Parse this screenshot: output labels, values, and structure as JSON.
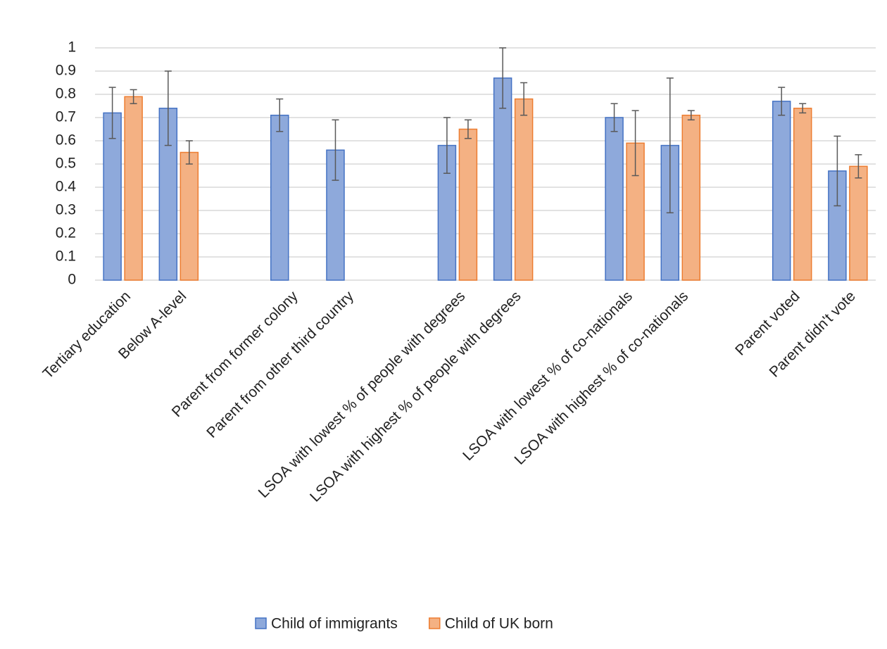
{
  "chart_data": {
    "type": "bar",
    "categories": [
      "Tertiary education",
      "Below A-level",
      null,
      "Parent from former colony",
      "Parent from other third country",
      null,
      "LSOA with lowest % of people with degrees",
      "LSOA with highest % of people with degrees",
      null,
      "LSOA with lowest % of co-nationals",
      "LSOA with highest % of co-nationals",
      null,
      "Parent voted",
      "Parent didn't vote"
    ],
    "series": [
      {
        "name": "Child of immigrants",
        "color": "#8ea9db",
        "stroke": "#4472c4",
        "values": [
          0.72,
          0.74,
          null,
          0.71,
          0.56,
          null,
          0.58,
          0.87,
          null,
          0.7,
          0.58,
          null,
          0.77,
          0.47
        ],
        "errors": [
          0.11,
          0.16,
          null,
          0.07,
          0.13,
          null,
          0.12,
          0.13,
          null,
          0.06,
          0.29,
          null,
          0.06,
          0.15
        ]
      },
      {
        "name": "Child of UK born",
        "color": "#f4b183",
        "stroke": "#ed7d31",
        "values": [
          0.79,
          0.55,
          null,
          null,
          null,
          null,
          0.65,
          0.78,
          null,
          0.59,
          0.71,
          null,
          0.74,
          0.49
        ],
        "errors": [
          0.03,
          0.05,
          null,
          null,
          null,
          null,
          0.04,
          0.07,
          null,
          0.14,
          0.02,
          null,
          0.02,
          0.05
        ]
      }
    ],
    "ylim": [
      0,
      1
    ],
    "yticks": [
      0,
      0.1,
      0.2,
      0.3,
      0.4,
      0.5,
      0.6,
      0.7,
      0.8,
      0.9,
      1
    ],
    "grid": true,
    "legend": "bottom"
  }
}
